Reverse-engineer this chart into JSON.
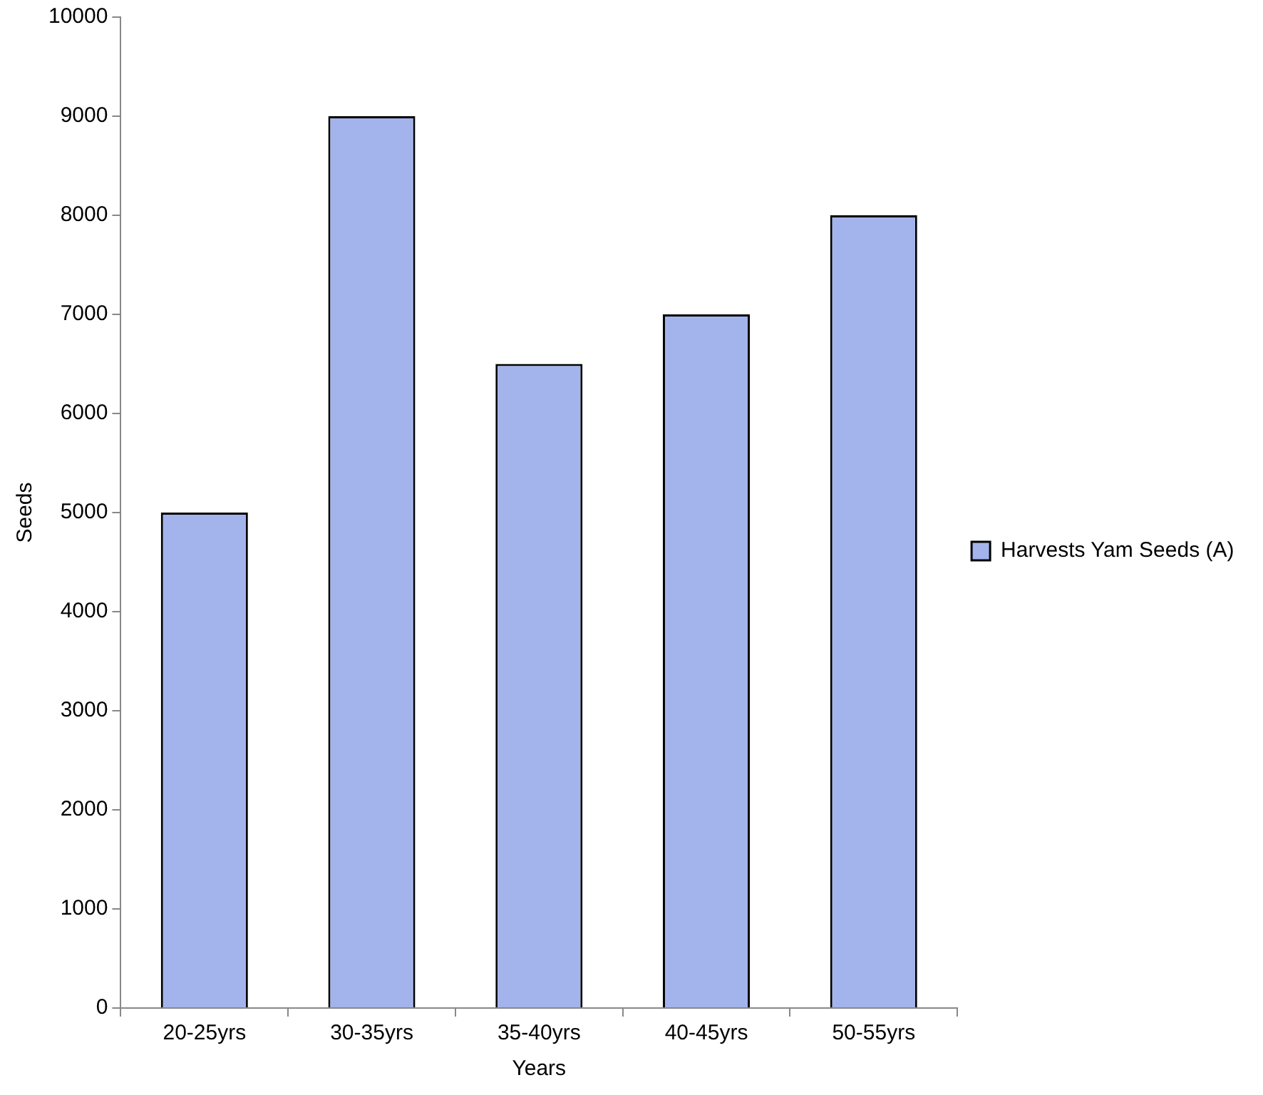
{
  "chart_data": {
    "type": "bar",
    "xlabel": "Years",
    "ylabel": "Seeds",
    "categories": [
      "20-25yrs",
      "30-35yrs",
      "35-40yrs",
      "40-45yrs",
      "50-55yrs"
    ],
    "series": [
      {
        "name": "Harvests Yam Seeds (A)",
        "color": "#a3b3ec",
        "values": [
          5000,
          9000,
          6500,
          7000,
          8000
        ]
      }
    ],
    "ylim": [
      0,
      10000
    ],
    "yticks": [
      0,
      1000,
      2000,
      3000,
      4000,
      5000,
      6000,
      7000,
      8000,
      9000,
      10000
    ],
    "grid": false,
    "legend": "right"
  }
}
